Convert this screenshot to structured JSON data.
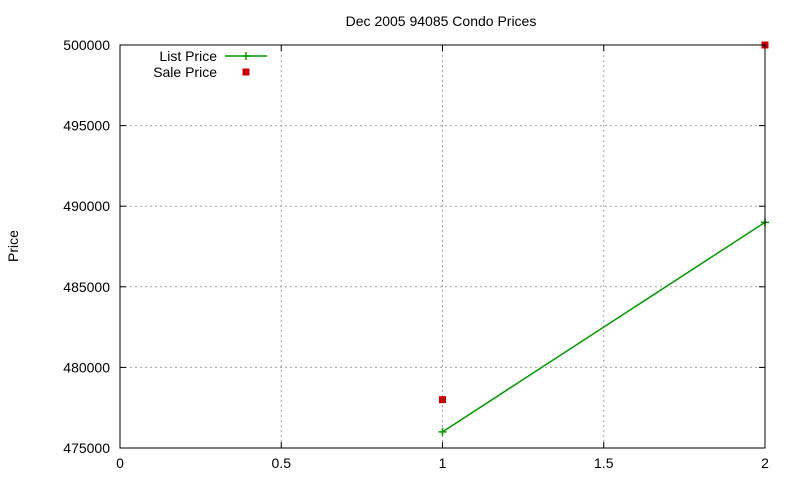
{
  "chart_data": {
    "type": "line",
    "title": "Dec 2005 94085 Condo Prices",
    "xlabel": "",
    "ylabel": "Price",
    "xlim": [
      0,
      2
    ],
    "ylim": [
      475000,
      500000
    ],
    "xticks": [
      "0",
      "0.5",
      "1",
      "1.5",
      "2"
    ],
    "yticks": [
      "475000",
      "480000",
      "485000",
      "490000",
      "495000",
      "500000"
    ],
    "grid": true,
    "legend_position": "top-left",
    "series": [
      {
        "name": "List Price",
        "style": "linespoints",
        "marker": "plus",
        "color": "#009900",
        "x": [
          1,
          2
        ],
        "y": [
          476000,
          489000
        ]
      },
      {
        "name": "Sale Price",
        "style": "points",
        "marker": "square",
        "color": "#cc0000",
        "x": [
          1,
          2
        ],
        "y": [
          478000,
          500000
        ]
      }
    ]
  }
}
